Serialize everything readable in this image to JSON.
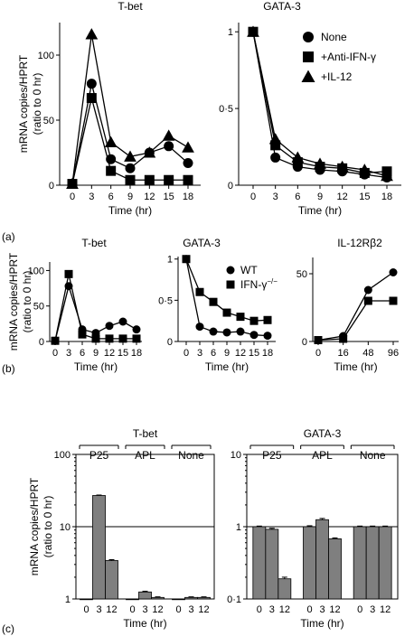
{
  "chart_data": [
    {
      "panel": "(a)",
      "type": "line",
      "title": "T-bet",
      "xlabel": "Time (hr)",
      "ylabel": [
        "mRNA copies/HPRT",
        "(ratio to 0 hr)"
      ],
      "x": [
        0,
        3,
        6,
        9,
        12,
        15,
        18
      ],
      "xticks": [
        "0",
        "3",
        "6",
        "9",
        "12",
        "15",
        "18"
      ],
      "ylim": [
        0,
        125
      ],
      "yticks": [
        0,
        50,
        100
      ],
      "ytick_labels": [
        "0",
        "50",
        "100"
      ],
      "series": [
        {
          "name": "None",
          "marker": "circle",
          "values": [
            1,
            78,
            20,
            13,
            25,
            30,
            17
          ]
        },
        {
          "name": "+Anti-IFN-γ",
          "marker": "square",
          "values": [
            1,
            67,
            11,
            4,
            4,
            4,
            4
          ]
        },
        {
          "name": "+IL-12",
          "marker": "triangle",
          "values": [
            1,
            116,
            33,
            22,
            25,
            38,
            29
          ]
        }
      ]
    },
    {
      "panel": "(a)",
      "type": "line",
      "title": "GATA-3",
      "xlabel": "Time (hr)",
      "x": [
        0,
        3,
        6,
        9,
        12,
        15,
        18
      ],
      "xticks": [
        "0",
        "3",
        "6",
        "9",
        "12",
        "15",
        "18"
      ],
      "ylim": [
        0,
        1.06
      ],
      "yticks": [
        0,
        0.5,
        1
      ],
      "ytick_labels": [
        "0",
        "0·5",
        "1"
      ],
      "legend": "top-right",
      "series": [
        {
          "name": "None",
          "marker": "circle",
          "values": [
            1,
            0.18,
            0.12,
            0.1,
            0.09,
            0.07,
            0.05
          ]
        },
        {
          "name": "+Anti-IFN-γ",
          "marker": "square",
          "values": [
            1,
            0.26,
            0.15,
            0.12,
            0.11,
            0.08,
            0.09
          ]
        },
        {
          "name": "+IL-12",
          "marker": "triangle",
          "values": [
            1,
            0.3,
            0.18,
            0.14,
            0.12,
            0.1,
            0.06
          ]
        }
      ]
    },
    {
      "panel": "(b)",
      "type": "line",
      "title": "T-bet",
      "xlabel": "Time (hr)",
      "ylabel": [
        "mRNA copies/HPRT",
        "(ratio to 0 hr)"
      ],
      "x": [
        0,
        3,
        6,
        9,
        12,
        15,
        18
      ],
      "xticks": [
        "0",
        "3",
        "6",
        "9",
        "12",
        "15",
        "18"
      ],
      "ylim": [
        0,
        112
      ],
      "yticks": [
        0,
        50,
        100
      ],
      "ytick_labels": [
        "0",
        "50",
        "100"
      ],
      "series": [
        {
          "name": "WT",
          "marker": "circle",
          "values": [
            1,
            78,
            17,
            12,
            22,
            28,
            17
          ]
        },
        {
          "name": "IFN-γ−/−",
          "marker": "square",
          "values": [
            1,
            95,
            10,
            4,
            4,
            4,
            4
          ]
        }
      ]
    },
    {
      "panel": "(b)",
      "type": "line",
      "title": "GATA-3",
      "xlabel": "Time (hr)",
      "x": [
        0,
        3,
        6,
        9,
        12,
        15,
        18
      ],
      "xticks": [
        "0",
        "3",
        "6",
        "9",
        "12",
        "15",
        "18"
      ],
      "ylim": [
        0,
        1.03
      ],
      "yticks": [
        0,
        0.5,
        1
      ],
      "ytick_labels": [
        "0",
        "0·5",
        "1"
      ],
      "legend": "top-right",
      "series": [
        {
          "name": "WT",
          "marker": "circle",
          "values": [
            1,
            0.18,
            0.12,
            0.11,
            0.12,
            0.08,
            0.07
          ]
        },
        {
          "name": "IFN-γ−/−",
          "marker": "square",
          "values": [
            1,
            0.6,
            0.48,
            0.35,
            0.3,
            0.25,
            0.26
          ]
        }
      ]
    },
    {
      "panel": "(b)",
      "type": "line",
      "title": "IL-12Rβ2",
      "xlabel": "Time (hr)",
      "x": [
        0,
        16,
        48,
        96
      ],
      "xticks": [
        "0",
        "16",
        "48",
        "96"
      ],
      "ylim": [
        0,
        62
      ],
      "yticks": [
        0,
        50
      ],
      "ytick_labels": [
        "0",
        "50"
      ],
      "series": [
        {
          "name": "WT",
          "marker": "circle",
          "values": [
            1,
            4,
            38,
            51
          ]
        },
        {
          "name": "IFN-γ−/−",
          "marker": "square",
          "values": [
            1,
            2,
            30,
            30
          ]
        }
      ]
    },
    {
      "panel": "(c)",
      "type": "bar",
      "title": "T-bet",
      "xlabel": "Time (hr)",
      "ylabel": [
        "mRNA copies/HPRT",
        "(ratio to 0 hr)"
      ],
      "scale": "log",
      "ylim": [
        1,
        100
      ],
      "yticks": [
        1,
        10,
        100
      ],
      "ytick_labels": [
        "1",
        "10",
        "100"
      ],
      "reference_line": 10,
      "groups": [
        {
          "label": "P25",
          "categories": [
            "0",
            "3",
            "12"
          ],
          "values": [
            1.0,
            27,
            3.4
          ],
          "errors": [
            0,
            0.4,
            0.1
          ]
        },
        {
          "label": "APL",
          "categories": [
            "0",
            "3",
            "12"
          ],
          "values": [
            1.0,
            1.25,
            1.05
          ],
          "errors": [
            0,
            0.03,
            0.02
          ]
        },
        {
          "label": "None",
          "categories": [
            "0",
            "3",
            "12"
          ],
          "values": [
            1.0,
            1.05,
            1.05
          ],
          "errors": [
            0,
            0.02,
            0.02
          ]
        }
      ]
    },
    {
      "panel": "(c)",
      "type": "bar",
      "title": "GATA-3",
      "xlabel": "Time (hr)",
      "scale": "log",
      "ylim": [
        0.1,
        10
      ],
      "yticks": [
        0.1,
        1,
        10
      ],
      "ytick_labels": [
        "0·1",
        "1",
        "10"
      ],
      "reference_line": 1,
      "groups": [
        {
          "label": "P25",
          "categories": [
            "0",
            "3",
            "12"
          ],
          "values": [
            1.0,
            0.92,
            0.19
          ],
          "errors": [
            0.02,
            0.03,
            0.01
          ]
        },
        {
          "label": "APL",
          "categories": [
            "0",
            "3",
            "12"
          ],
          "values": [
            1.0,
            1.25,
            0.68
          ],
          "errors": [
            0.03,
            0.05,
            0.02
          ]
        },
        {
          "label": "None",
          "categories": [
            "0",
            "3",
            "12"
          ],
          "values": [
            1.0,
            1.0,
            1.0
          ],
          "errors": [
            0.02,
            0.02,
            0.02
          ]
        }
      ]
    }
  ],
  "panel_labels": [
    "(a)",
    "(b)",
    "(c)"
  ]
}
